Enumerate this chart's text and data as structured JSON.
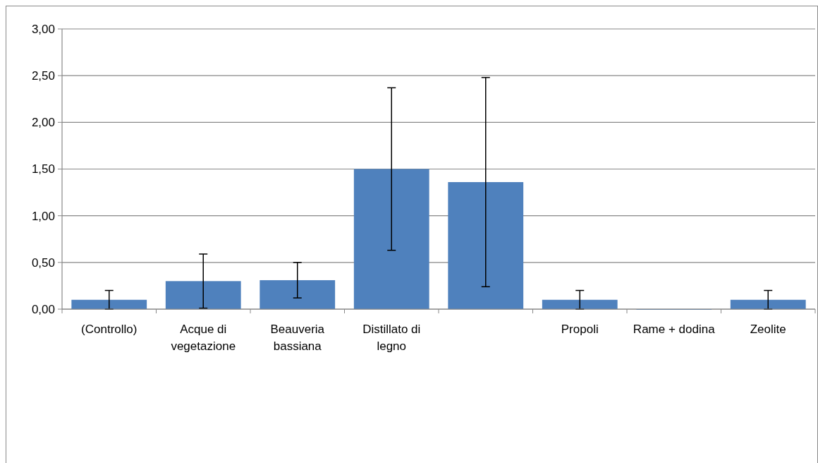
{
  "chart_data": {
    "type": "bar",
    "categories": [
      "(Controllo)",
      "Acque di vegetazione",
      "Beauveria bassiana",
      "Distillato di legno",
      null,
      "Propoli",
      "Rame + dodina",
      "Zeolite"
    ],
    "values": [
      0.1,
      0.3,
      0.31,
      1.5,
      1.36,
      0.1,
      0,
      0.1
    ],
    "errors": [
      0.1,
      0.29,
      0.19,
      0.87,
      1.12,
      0.1,
      null,
      0.1
    ],
    "color": "#4f81bd",
    "ylim": [
      0,
      3
    ],
    "yticks": [
      {
        "value": 0,
        "label": "0,00"
      },
      {
        "value": 0.5,
        "label": "0,50"
      },
      {
        "value": 1,
        "label": "1,00"
      },
      {
        "value": 1.5,
        "label": "1,50"
      },
      {
        "value": 2,
        "label": "2,00"
      },
      {
        "value": 2.5,
        "label": "2,50"
      },
      {
        "value": 3,
        "label": "3,00"
      }
    ],
    "grid": "y"
  }
}
